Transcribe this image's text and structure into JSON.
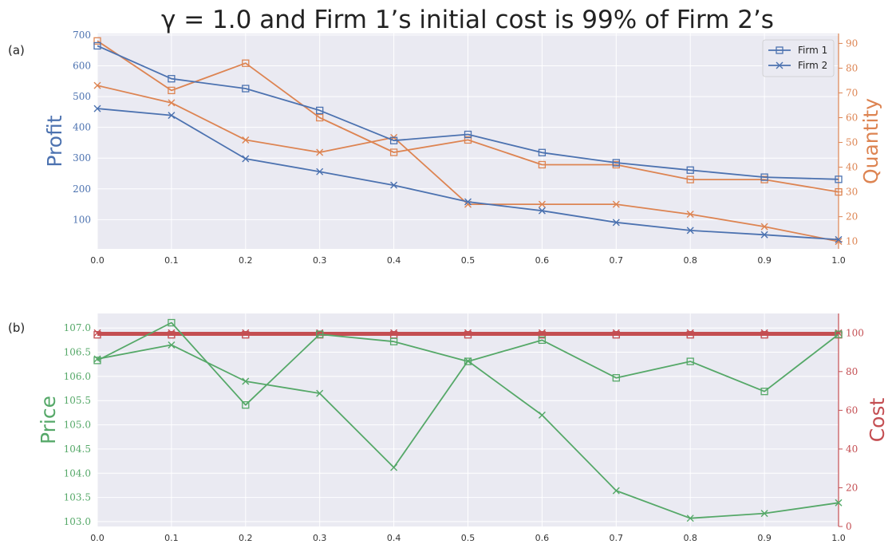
{
  "figure": {
    "title": "γ = 1.0 and Firm 1’s initial cost is 99% of Firm 2’s"
  },
  "colors": {
    "blue": "#4c72b0",
    "orange": "#dd8452",
    "green": "#55a868",
    "red": "#c44e52",
    "panel_bg": "#eaeaf2",
    "grid": "#ffffff"
  },
  "chart_data": [
    {
      "panel": "(a)",
      "type": "line",
      "x": [
        0.0,
        0.1,
        0.2,
        0.3,
        0.4,
        0.5,
        0.6,
        0.7,
        0.8,
        0.9,
        1.0
      ],
      "x_ticks": [
        "0.0",
        "0.1",
        "0.2",
        "0.3",
        "0.4",
        "0.5",
        "0.6",
        "0.7",
        "0.8",
        "0.9",
        "1.0"
      ],
      "xlim": [
        0.0,
        1.0
      ],
      "legend": {
        "position": "upper-right",
        "entries": [
          {
            "label": "Firm 1",
            "marker": "square"
          },
          {
            "label": "Firm 2",
            "marker": "x"
          }
        ]
      },
      "y_left": {
        "label": "Profit",
        "color": "blue",
        "lim": [
          5,
          705
        ],
        "ticks": [
          100,
          200,
          300,
          400,
          500,
          600,
          700
        ],
        "series": [
          {
            "name": "Firm 1",
            "marker": "square",
            "values": [
              665,
              558,
              526,
              455,
              357,
              377,
              318,
              285,
              261,
              238,
              231
            ]
          },
          {
            "name": "Firm 2",
            "marker": "x",
            "values": [
              461,
              439,
              298,
              256,
              212,
              158,
              129,
              91,
              65,
              51,
              35
            ]
          }
        ]
      },
      "y_right": {
        "label": "Quantity",
        "color": "orange",
        "lim": [
          7,
          94
        ],
        "ticks": [
          10,
          20,
          30,
          40,
          50,
          60,
          70,
          80,
          90
        ],
        "series": [
          {
            "name": "Firm 1",
            "marker": "square",
            "values": [
              91,
              71,
              82,
              60,
              46,
              51,
              41,
              41,
              35,
              35,
              30
            ]
          },
          {
            "name": "Firm 2",
            "marker": "x",
            "values": [
              73,
              66,
              51,
              46,
              52,
              25,
              25,
              25,
              21,
              16,
              10
            ]
          }
        ]
      }
    },
    {
      "panel": "(b)",
      "type": "line",
      "x": [
        0.0,
        0.1,
        0.2,
        0.3,
        0.4,
        0.5,
        0.6,
        0.7,
        0.8,
        0.9,
        1.0
      ],
      "x_ticks": [
        "0.0",
        "0.1",
        "0.2",
        "0.3",
        "0.4",
        "0.5",
        "0.6",
        "0.7",
        "0.8",
        "0.9",
        "1.0"
      ],
      "xlim": [
        0.0,
        1.0
      ],
      "y_left": {
        "label": "Price",
        "color": "green",
        "lim": [
          102.9,
          107.3
        ],
        "ticks": [
          103.0,
          103.5,
          104.0,
          104.5,
          105.0,
          105.5,
          106.0,
          106.5,
          107.0
        ],
        "tick_labels": [
          "103.0",
          "103.5",
          "104.0",
          "104.5",
          "105.0",
          "105.5",
          "106.0",
          "106.5",
          "107.0"
        ],
        "series": [
          {
            "name": "Firm 1",
            "marker": "square",
            "values": [
              106.33,
              107.11,
              105.41,
              106.87,
              106.72,
              106.31,
              106.75,
              105.97,
              106.31,
              105.69,
              106.87
            ]
          },
          {
            "name": "Firm 2",
            "marker": "x",
            "values": [
              106.36,
              106.65,
              105.9,
              105.65,
              104.12,
              106.32,
              105.2,
              103.64,
              103.07,
              103.17,
              103.39
            ]
          }
        ]
      },
      "y_right": {
        "label": "Cost",
        "color": "red",
        "lim": [
          0,
          110
        ],
        "ticks": [
          0,
          20,
          40,
          60,
          80,
          100
        ],
        "series": [
          {
            "name": "Firm 1",
            "marker": "square",
            "values": [
              99,
              99,
              99,
              99,
              99,
              99,
              99,
              99,
              99,
              99,
              99
            ]
          },
          {
            "name": "Firm 2",
            "marker": "x",
            "values": [
              100,
              100,
              100,
              100,
              100,
              100,
              100,
              100,
              100,
              100,
              100
            ]
          }
        ]
      }
    }
  ]
}
